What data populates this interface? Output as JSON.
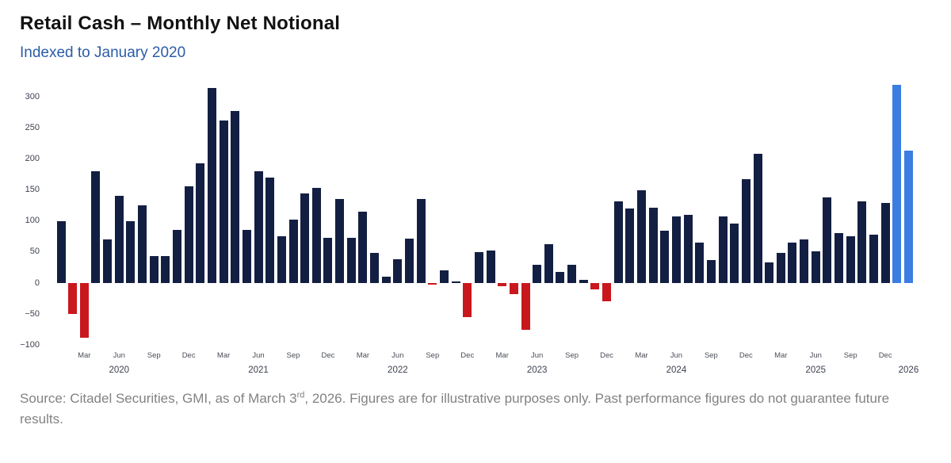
{
  "header": {
    "title": "Retail Cash – Monthly Net Notional",
    "subtitle": "Indexed to January 2020"
  },
  "source": {
    "prefix": "Source: Citadel Securities, GMI, as of March 3",
    "superscript": "rd",
    "suffix": ", 2026. Figures are for illustrative purposes only. Past performance figures do not guarantee future results."
  },
  "chart_data": {
    "type": "bar",
    "title": "Retail Cash – Monthly Net Notional",
    "subtitle": "Indexed to January 2020",
    "xlabel": "",
    "ylabel": "",
    "grid": false,
    "legend": false,
    "ylim": [
      -100,
      330
    ],
    "y_ticks": [
      300,
      250,
      200,
      150,
      100,
      50,
      0,
      -50,
      -100
    ],
    "x": [
      "Jan 2020",
      "Feb 2020",
      "Mar 2020",
      "Apr 2020",
      "May 2020",
      "Jun 2020",
      "Jul 2020",
      "Aug 2020",
      "Sep 2020",
      "Oct 2020",
      "Nov 2020",
      "Dec 2020",
      "Jan 2021",
      "Feb 2021",
      "Mar 2021",
      "Apr 2021",
      "May 2021",
      "Jun 2021",
      "Jul 2021",
      "Aug 2021",
      "Sep 2021",
      "Oct 2021",
      "Nov 2021",
      "Dec 2021",
      "Jan 2022",
      "Feb 2022",
      "Mar 2022",
      "Apr 2022",
      "May 2022",
      "Jun 2022",
      "Jul 2022",
      "Aug 2022",
      "Sep 2022",
      "Oct 2022",
      "Nov 2022",
      "Dec 2022",
      "Jan 2023",
      "Feb 2023",
      "Mar 2023",
      "Apr 2023",
      "May 2023",
      "Jun 2023",
      "Jul 2023",
      "Aug 2023",
      "Sep 2023",
      "Oct 2023",
      "Nov 2023",
      "Dec 2023",
      "Jan 2024",
      "Feb 2024",
      "Mar 2024",
      "Apr 2024",
      "May 2024",
      "Jun 2024",
      "Jul 2024",
      "Aug 2024",
      "Sep 2024",
      "Oct 2024",
      "Nov 2024",
      "Dec 2024",
      "Jan 2025",
      "Feb 2025",
      "Mar 2025",
      "Apr 2025",
      "May 2025",
      "Jun 2025",
      "Jul 2025",
      "Aug 2025",
      "Sep 2025",
      "Oct 2025",
      "Nov 2025",
      "Dec 2025",
      "Jan 2026",
      "Feb 2026"
    ],
    "values": [
      100,
      -50,
      -88,
      180,
      70,
      141,
      100,
      125,
      43,
      44,
      86,
      156,
      193,
      315,
      262,
      277,
      86,
      180,
      170,
      75,
      102,
      145,
      154,
      73,
      135,
      73,
      115,
      48,
      10,
      38,
      72,
      135,
      -3,
      20,
      2,
      -55,
      50,
      53,
      -5,
      -18,
      -75,
      30,
      63,
      18,
      29,
      5,
      -10,
      -30,
      132,
      120,
      150,
      121,
      84,
      108,
      110,
      65,
      37,
      108,
      96,
      168,
      208,
      33,
      48,
      65,
      70,
      51,
      138,
      80,
      76,
      132,
      78,
      129,
      320,
      213
    ],
    "month_tick_labels": [
      "Mar",
      "Jun",
      "Sep",
      "Dec"
    ],
    "year_ticks": [
      {
        "label": "2020",
        "month": "Jun 2020"
      },
      {
        "label": "2021",
        "month": "Jun 2021"
      },
      {
        "label": "2022",
        "month": "Jun 2022"
      },
      {
        "label": "2023",
        "month": "Jun 2023"
      },
      {
        "label": "2024",
        "month": "Jun 2024"
      },
      {
        "label": "2025",
        "month": "Jun 2025"
      },
      {
        "label": "2026",
        "month": "Feb 2026"
      }
    ],
    "highlight_months": [
      "Jan 2026",
      "Feb 2026"
    ],
    "colors": {
      "positive": "#131f42",
      "negative": "#c9181d",
      "highlight": "#3c7de2"
    }
  }
}
